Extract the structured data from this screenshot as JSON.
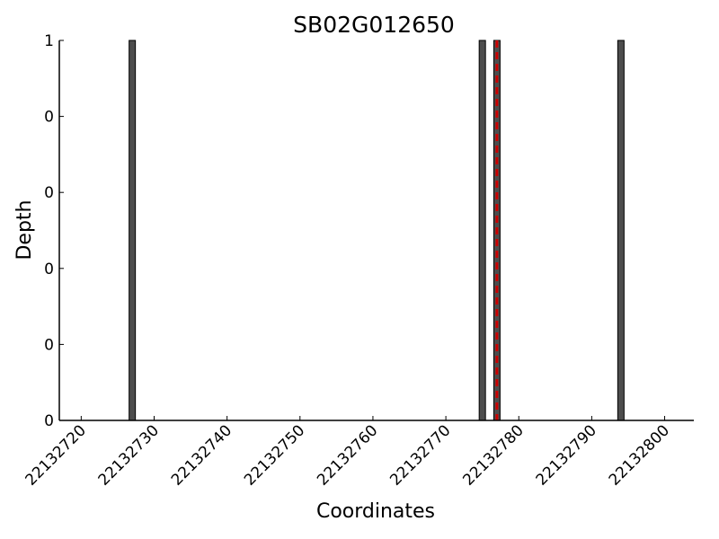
{
  "chart_data": {
    "type": "bar",
    "title": "SB02G012650",
    "xlabel": "Coordinates",
    "ylabel": "Depth",
    "xlim": [
      22132717,
      22132804
    ],
    "ylim": [
      0,
      1
    ],
    "x_ticks": [
      22132720,
      22132730,
      22132740,
      22132750,
      22132760,
      22132770,
      22132780,
      22132790,
      22132800
    ],
    "y_tick_labels": [
      "0",
      "0",
      "0",
      "0",
      "0",
      "1"
    ],
    "bar_color": "#4d4d4d",
    "marker_color": "#cc0000",
    "series": [
      {
        "x": [
          22132727,
          22132775,
          22132777,
          22132794
        ],
        "values": [
          1,
          1,
          1,
          1
        ]
      }
    ],
    "marker_line_x": 22132777,
    "grid": false,
    "legend": "none"
  }
}
